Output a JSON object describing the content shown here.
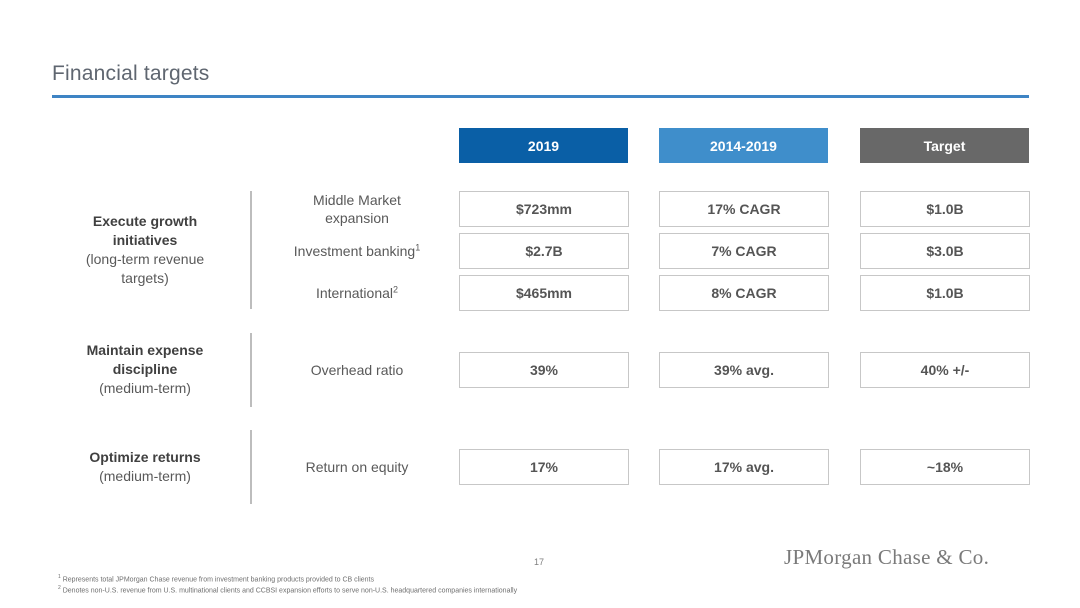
{
  "title": "Financial targets",
  "columns": [
    {
      "label": "2019",
      "color": "#0a5fa6"
    },
    {
      "label": "2014-2019",
      "color": "#3f8ecb"
    },
    {
      "label": "Target",
      "color": "#686868"
    }
  ],
  "groups": [
    {
      "title": "Execute growth initiatives",
      "subtitle": "(long-term revenue targets)"
    },
    {
      "title": "Maintain expense discipline",
      "subtitle": "(medium-term)"
    },
    {
      "title": "Optimize returns",
      "subtitle": "(medium-term)"
    }
  ],
  "rows": [
    {
      "label": "Middle Market expansion",
      "sup": "",
      "values": [
        "$723mm",
        "17% CAGR",
        "$1.0B"
      ]
    },
    {
      "label": "Investment banking",
      "sup": "1",
      "values": [
        "$2.7B",
        "7% CAGR",
        "$3.0B"
      ]
    },
    {
      "label": "International",
      "sup": "2",
      "values": [
        "$465mm",
        "8% CAGR",
        "$1.0B"
      ]
    },
    {
      "label": "Overhead ratio",
      "sup": "",
      "values": [
        "39%",
        "39% avg.",
        "40% +/-"
      ]
    },
    {
      "label": "Return on equity",
      "sup": "",
      "values": [
        "17%",
        "17% avg.",
        "~18%"
      ]
    }
  ],
  "page_number": "17",
  "logo": "JPMorgan Chase & Co.",
  "footnotes": [
    {
      "mark": "1",
      "text": "Represents total JPMorgan Chase revenue from investment banking products provided to CB clients"
    },
    {
      "mark": "2",
      "text": "Denotes non-U.S. revenue from U.S. multinational clients and CCBSI expansion efforts to serve non-U.S. headquartered companies internationally"
    }
  ]
}
